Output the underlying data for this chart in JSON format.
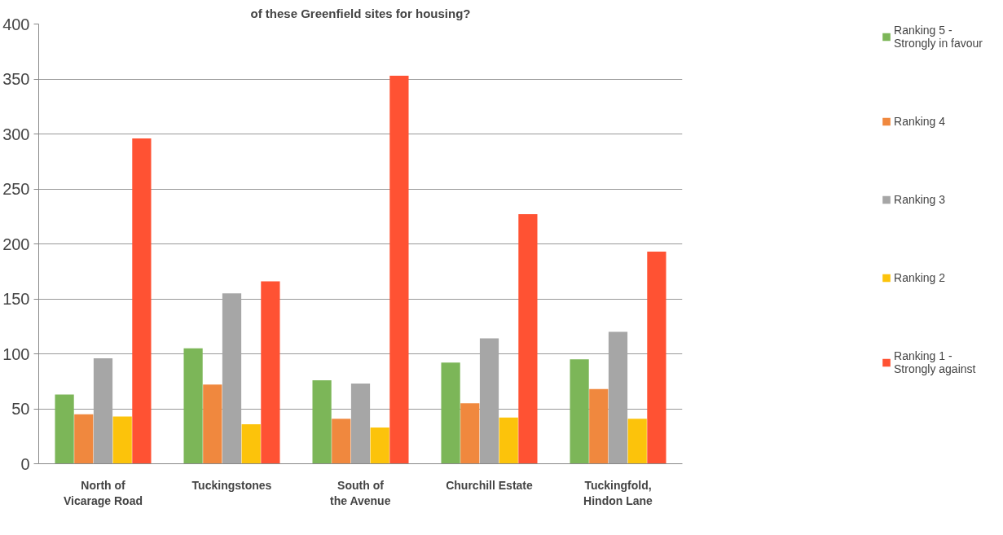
{
  "chart_data": {
    "type": "bar",
    "title": "of these Greenfield sites for housing?",
    "categories": [
      "North of Vicarage Road",
      "Tuckingstones",
      "South of the Avenue",
      "Churchill Estate",
      "Tuckingfold, Hindon Lane"
    ],
    "series": [
      {
        "name": "Ranking 5 - Strongly in favour",
        "color": "#7cb658",
        "values": [
          63,
          105,
          76,
          92,
          95
        ]
      },
      {
        "name": "Ranking 4",
        "color": "#f0883e",
        "values": [
          45,
          72,
          41,
          55,
          68
        ]
      },
      {
        "name": "Ranking 3",
        "color": "#a6a6a6",
        "values": [
          96,
          155,
          73,
          114,
          120
        ]
      },
      {
        "name": "Ranking 2",
        "color": "#fcc30b",
        "values": [
          43,
          36,
          33,
          42,
          41
        ]
      },
      {
        "name": "Ranking 1 - Strongly against",
        "color": "#ff5233",
        "values": [
          296,
          166,
          353,
          227,
          193
        ]
      }
    ],
    "ylim": [
      0,
      400
    ],
    "yticks": [
      0,
      50,
      100,
      150,
      200,
      250,
      300,
      350,
      400
    ],
    "grid": "y",
    "legend": "right"
  }
}
